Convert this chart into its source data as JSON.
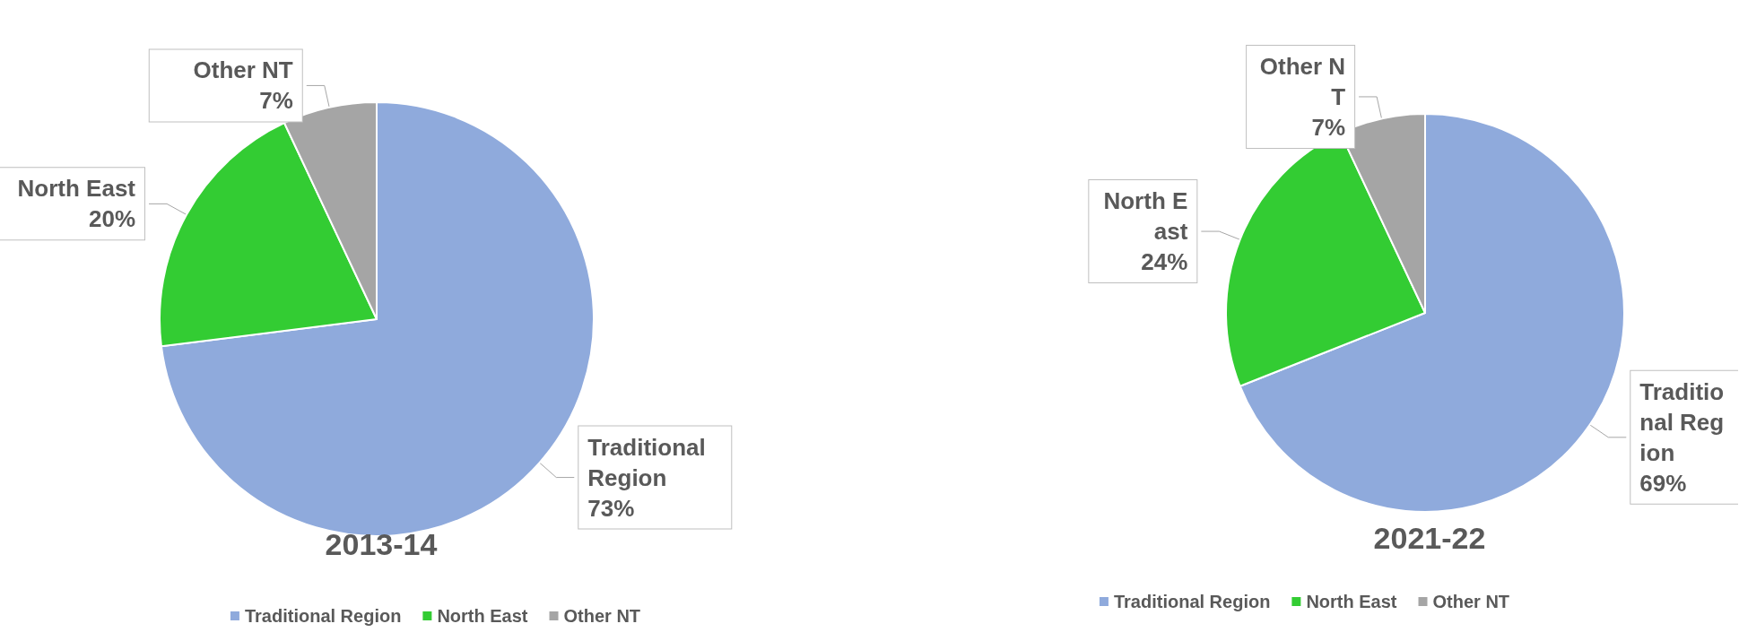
{
  "chart_data": [
    {
      "type": "pie",
      "title": "2013-14",
      "categories": [
        "Traditional Region",
        "North East",
        "Other NT"
      ],
      "values": [
        73,
        20,
        7
      ],
      "value_labels": [
        "73%",
        "20%",
        "7%"
      ],
      "colors": [
        "#8faadc",
        "#33cc33",
        "#a5a5a5"
      ],
      "legend": "bottom"
    },
    {
      "type": "pie",
      "title": "2021-22",
      "categories": [
        "Traditional Region",
        "North East",
        "Other NT"
      ],
      "values": [
        69,
        24,
        7
      ],
      "value_labels": [
        "69%",
        "24%",
        "7%"
      ],
      "colors": [
        "#8faadc",
        "#33cc33",
        "#a5a5a5"
      ],
      "legend": "bottom"
    }
  ]
}
